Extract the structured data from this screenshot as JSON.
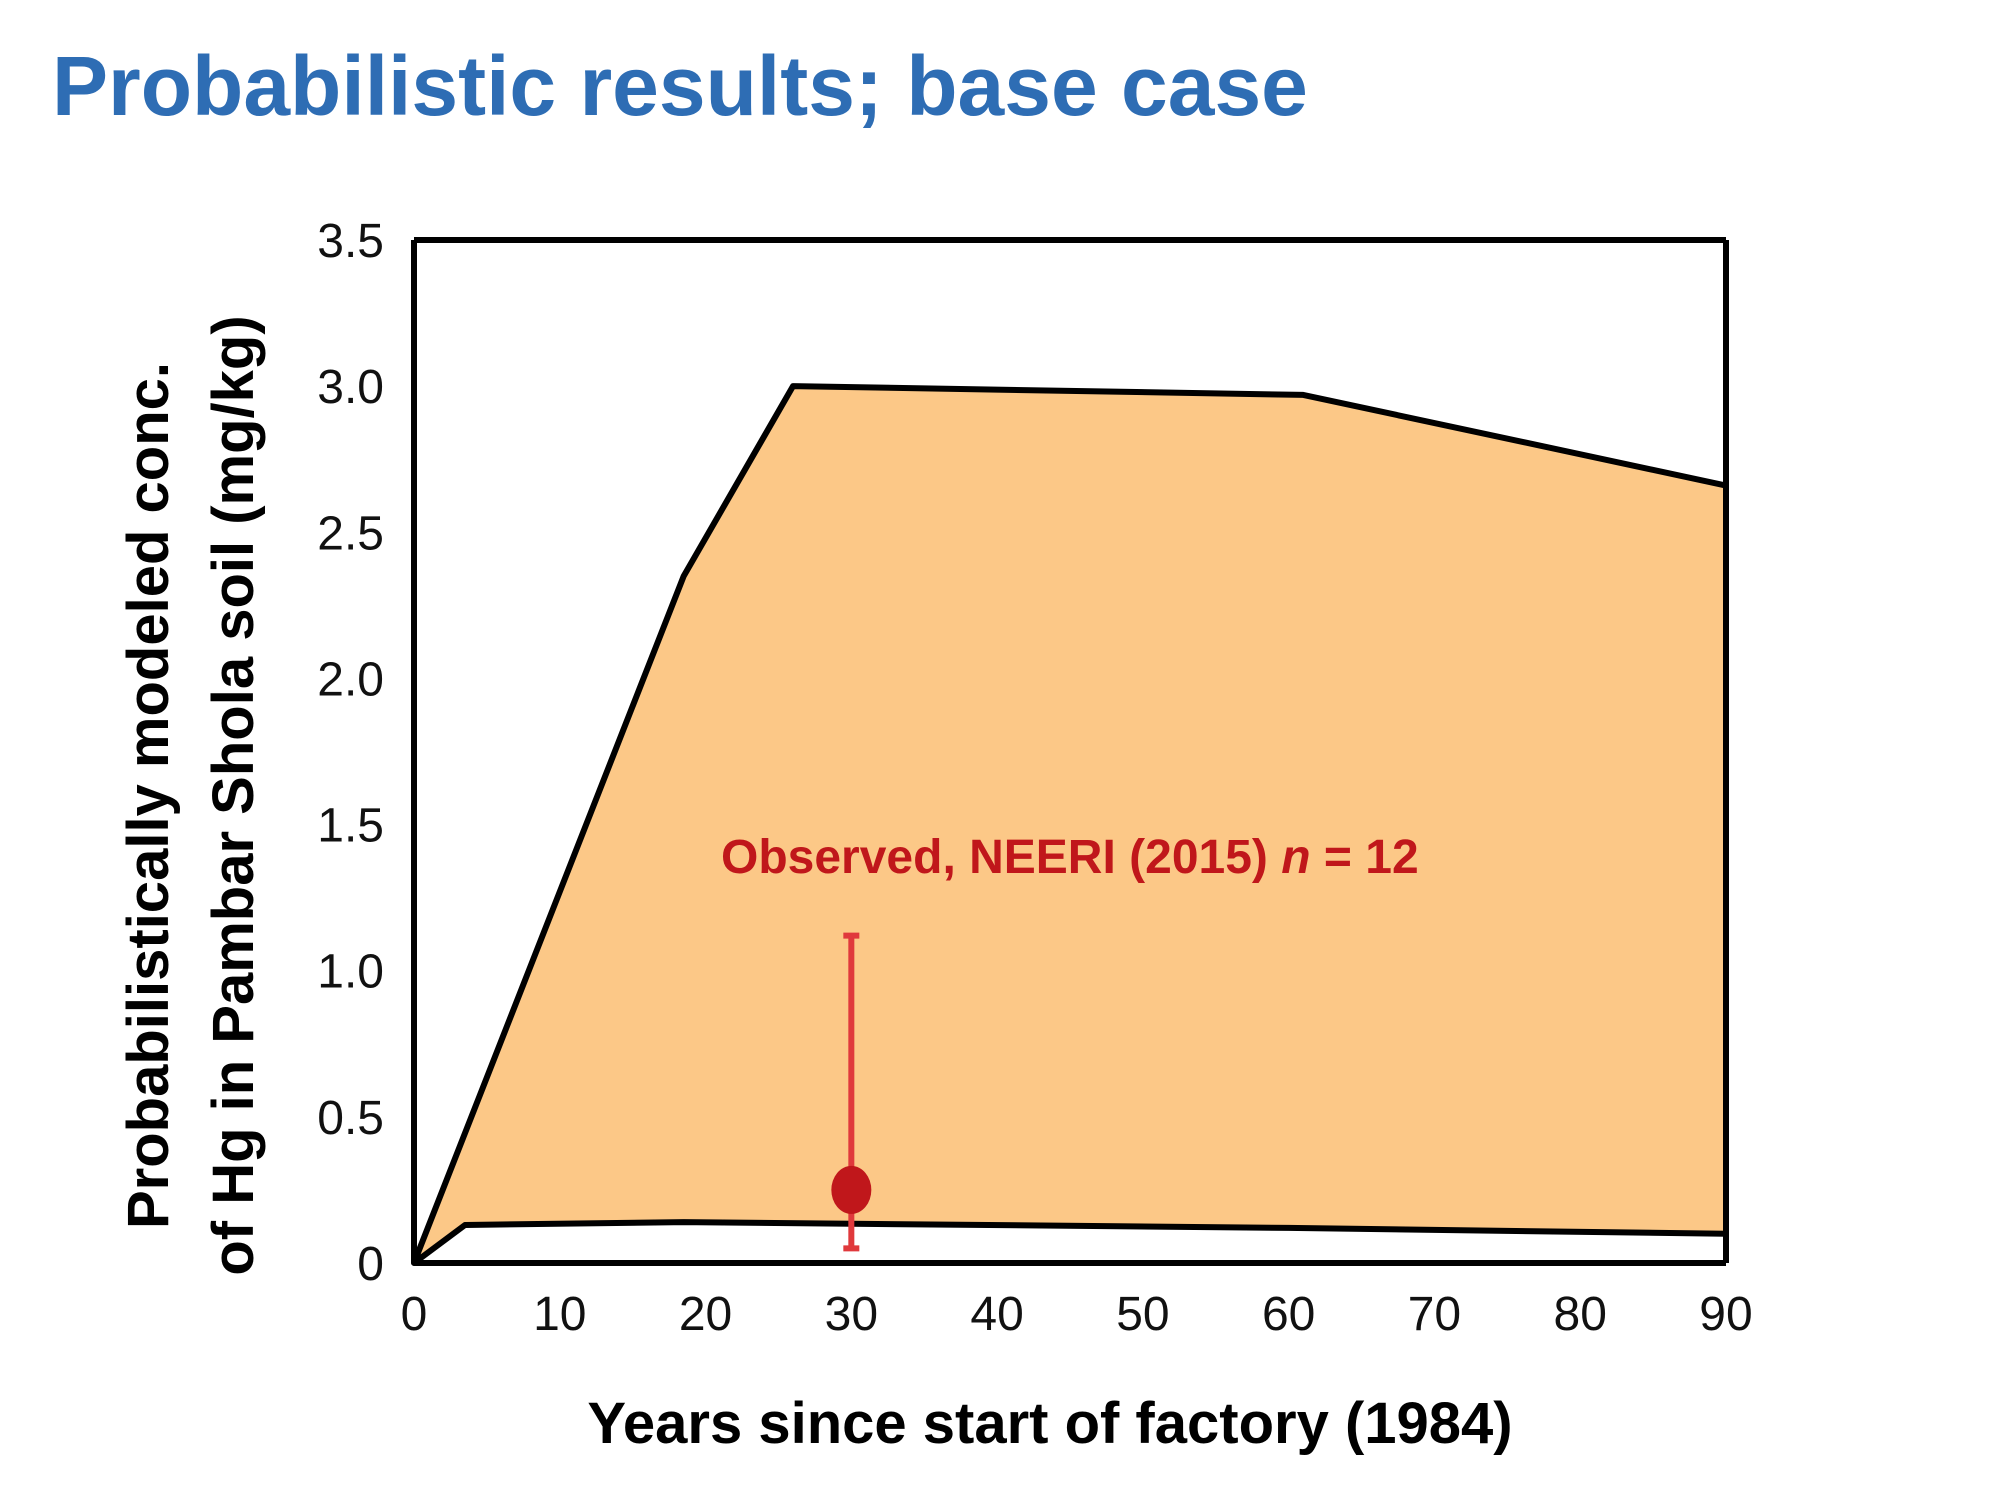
{
  "slide": {
    "title": "Probabilistic results; base case"
  },
  "colors": {
    "title": "#2e6db4",
    "band_fill": "#fcc887",
    "band_stroke": "#000000",
    "observed": "#c0171b",
    "errorbar": "#e0393c"
  },
  "chart_data": {
    "type": "area",
    "xlabel": "Years since start of factory (1984)",
    "ylabel_line1": "Probabilistically modeled conc.",
    "ylabel_line2": "of Hg in Pambar Shola soil (mg/kg)",
    "xlim": [
      0,
      90
    ],
    "ylim": [
      0,
      3.5
    ],
    "x_ticks": [
      0,
      10,
      20,
      30,
      40,
      50,
      60,
      70,
      80,
      90
    ],
    "x_tick_labels": [
      "0",
      "10",
      "20",
      "30",
      "40",
      "50",
      "60",
      "70",
      "80",
      "90"
    ],
    "y_ticks": [
      0,
      0.5,
      1.0,
      1.5,
      2.0,
      2.5,
      3.0,
      3.5
    ],
    "y_tick_labels": [
      "0",
      "0.5",
      "1.0",
      "1.5",
      "2.0",
      "2.5",
      "3.0",
      "3.5"
    ],
    "grid": false,
    "series": [
      {
        "role": "upper_bound",
        "points": [
          [
            0,
            0.0
          ],
          [
            18.5,
            2.35
          ],
          [
            26,
            3.0
          ],
          [
            61,
            2.97
          ],
          [
            90,
            2.66
          ]
        ]
      },
      {
        "role": "lower_bound",
        "points": [
          [
            0,
            0.0
          ],
          [
            3.5,
            0.13
          ],
          [
            18.5,
            0.14
          ],
          [
            60,
            0.12
          ],
          [
            90,
            0.1
          ]
        ]
      }
    ],
    "observed": {
      "x": 30,
      "y": 0.25,
      "err_low": 0.05,
      "err_high": 1.12,
      "label_prefix": "Observed, NEERI (2015) ",
      "label_n": "n",
      "label_suffix": " = 12"
    }
  }
}
